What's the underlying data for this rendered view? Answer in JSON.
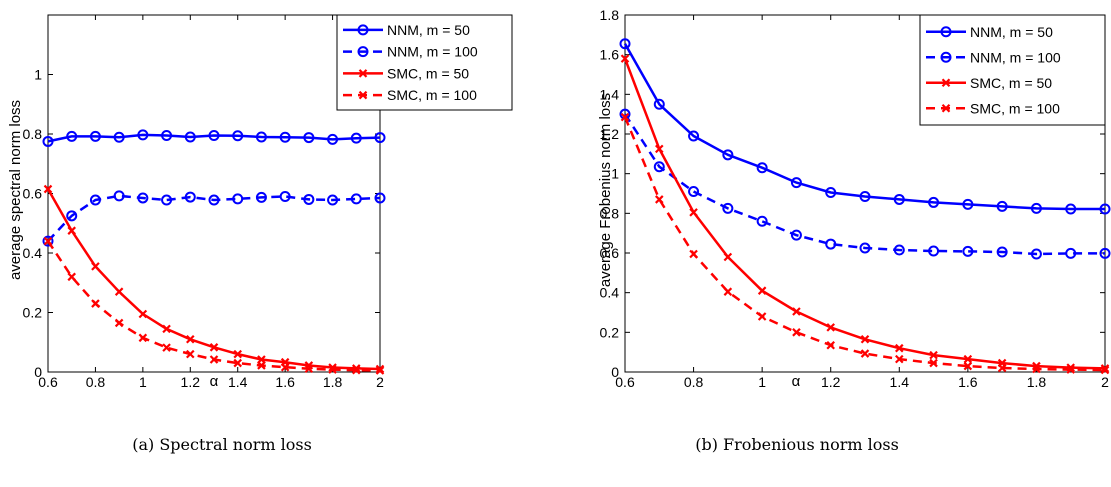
{
  "chart_data": [
    {
      "type": "line",
      "caption": "(a) Spectral norm loss",
      "xlabel": "α",
      "ylabel": "average spectral norm loss",
      "xlim": [
        0.6,
        2
      ],
      "ylim": [
        0,
        1.2
      ],
      "xticks": [
        "0.6",
        "0.8",
        "1",
        "1.2",
        "1.4",
        "1.6",
        "1.8",
        "2"
      ],
      "yticks": [
        "0",
        "0.2",
        "0.4",
        "0.6",
        "0.8",
        "1"
      ],
      "ytick_values": [
        0,
        0.2,
        0.4,
        0.6,
        0.8,
        1
      ],
      "legend_position": "top-right",
      "x": [
        0.6,
        0.7,
        0.8,
        0.9,
        1.0,
        1.1,
        1.2,
        1.3,
        1.4,
        1.5,
        1.6,
        1.7,
        1.8,
        1.9,
        2.0
      ],
      "series": [
        {
          "name": "NNM, m = 50",
          "color": "#0000ff",
          "dash": "solid",
          "marker": "circle",
          "values": [
            0.775,
            0.792,
            0.792,
            0.789,
            0.797,
            0.795,
            0.79,
            0.795,
            0.794,
            0.79,
            0.789,
            0.788,
            0.782,
            0.786,
            0.788
          ]
        },
        {
          "name": "NNM, m = 100",
          "color": "#0000ff",
          "dash": "dashed",
          "marker": "circle",
          "values": [
            0.44,
            0.525,
            0.578,
            0.592,
            0.585,
            0.578,
            0.588,
            0.578,
            0.582,
            0.587,
            0.59,
            0.58,
            0.578,
            0.582,
            0.585
          ]
        },
        {
          "name": "SMC, m = 50",
          "color": "#ff0000",
          "dash": "solid",
          "marker": "x",
          "values": [
            0.615,
            0.475,
            0.355,
            0.27,
            0.195,
            0.145,
            0.11,
            0.083,
            0.06,
            0.042,
            0.033,
            0.022,
            0.015,
            0.012,
            0.01
          ]
        },
        {
          "name": "SMC, m = 100",
          "color": "#ff0000",
          "dash": "dashed",
          "marker": "x",
          "values": [
            0.44,
            0.32,
            0.23,
            0.165,
            0.115,
            0.082,
            0.06,
            0.042,
            0.03,
            0.022,
            0.016,
            0.011,
            0.008,
            0.006,
            0.005
          ]
        }
      ]
    },
    {
      "type": "line",
      "caption": "(b) Frobenious norm loss",
      "xlabel": "α",
      "ylabel": "average Frobenius norm loss",
      "xlim": [
        0.6,
        2
      ],
      "ylim": [
        0,
        1.8
      ],
      "xticks": [
        "0.6",
        "0.8",
        "1",
        "1.2",
        "1.4",
        "1.6",
        "1.8",
        "2"
      ],
      "yticks": [
        "0",
        "0.2",
        "0.4",
        "0.6",
        "0.8",
        "1",
        "1.2",
        "1.4",
        "1.6",
        "1.8"
      ],
      "ytick_values": [
        0,
        0.2,
        0.4,
        0.6,
        0.8,
        1,
        1.2,
        1.4,
        1.6,
        1.8
      ],
      "legend_position": "top-right",
      "x": [
        0.6,
        0.7,
        0.8,
        0.9,
        1.0,
        1.1,
        1.2,
        1.3,
        1.4,
        1.5,
        1.6,
        1.7,
        1.8,
        1.9,
        2.0
      ],
      "series": [
        {
          "name": "NNM, m = 50",
          "color": "#0000ff",
          "dash": "solid",
          "marker": "circle",
          "values": [
            1.655,
            1.35,
            1.19,
            1.095,
            1.03,
            0.955,
            0.905,
            0.885,
            0.87,
            0.855,
            0.845,
            0.835,
            0.825,
            0.822,
            0.822
          ]
        },
        {
          "name": "NNM, m = 100",
          "color": "#0000ff",
          "dash": "dashed",
          "marker": "circle",
          "values": [
            1.3,
            1.035,
            0.91,
            0.825,
            0.76,
            0.69,
            0.645,
            0.625,
            0.615,
            0.61,
            0.608,
            0.605,
            0.595,
            0.598,
            0.598
          ]
        },
        {
          "name": "SMC, m = 50",
          "color": "#ff0000",
          "dash": "solid",
          "marker": "x",
          "values": [
            1.58,
            1.125,
            0.805,
            0.58,
            0.41,
            0.305,
            0.225,
            0.165,
            0.12,
            0.085,
            0.065,
            0.045,
            0.03,
            0.022,
            0.018
          ]
        },
        {
          "name": "SMC, m = 100",
          "color": "#ff0000",
          "dash": "dashed",
          "marker": "x",
          "values": [
            1.285,
            0.87,
            0.595,
            0.405,
            0.28,
            0.2,
            0.135,
            0.093,
            0.065,
            0.045,
            0.03,
            0.02,
            0.015,
            0.012,
            0.01
          ]
        }
      ]
    }
  ]
}
